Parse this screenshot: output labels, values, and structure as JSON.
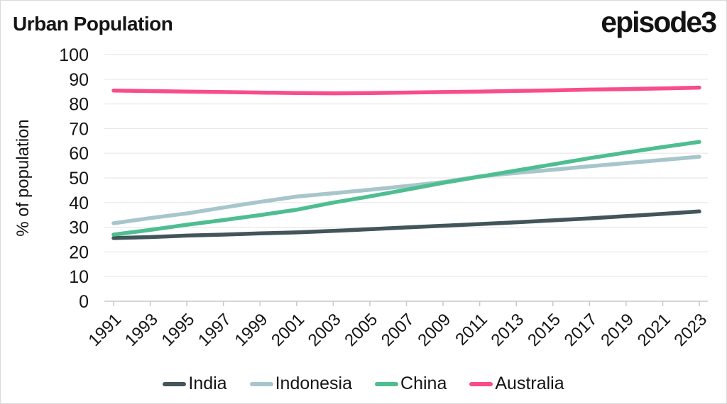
{
  "header": {
    "title": "Urban Population",
    "logo": "episode3"
  },
  "colors": {
    "text": "#141414",
    "gridline": "#e8e8e8",
    "axis": "#c9c9c9",
    "border": "#d9d9d9",
    "background": "#ffffff"
  },
  "chart_data": {
    "type": "line",
    "title": "Urban Population",
    "xlabel": "",
    "ylabel": "% of population",
    "ylim": [
      0,
      100
    ],
    "ytick_step": 10,
    "grid": true,
    "legend_position": "bottom",
    "categories": [
      "1991",
      "1993",
      "1995",
      "1997",
      "1999",
      "2001",
      "2003",
      "2005",
      "2007",
      "2009",
      "2011",
      "2013",
      "2015",
      "2017",
      "2019",
      "2021",
      "2023"
    ],
    "series": [
      {
        "name": "India",
        "color": "#42555a",
        "values": [
          25.6,
          26.0,
          26.6,
          27.0,
          27.5,
          27.9,
          28.5,
          29.2,
          29.9,
          30.6,
          31.3,
          32.0,
          32.8,
          33.6,
          34.5,
          35.4,
          36.4
        ]
      },
      {
        "name": "Indonesia",
        "color": "#a7c6cc",
        "values": [
          31.6,
          33.7,
          35.6,
          38.0,
          40.3,
          42.4,
          43.8,
          45.2,
          46.7,
          48.3,
          50.6,
          52.0,
          53.3,
          54.7,
          56.0,
          57.3,
          58.6
        ]
      },
      {
        "name": "China",
        "color": "#4ebe91",
        "values": [
          27.0,
          28.9,
          31.0,
          32.9,
          34.9,
          37.1,
          40.0,
          42.5,
          45.2,
          48.0,
          50.5,
          53.0,
          55.5,
          58.0,
          60.3,
          62.5,
          64.6
        ]
      },
      {
        "name": "Australia",
        "color": "#f94c8a",
        "values": [
          85.4,
          85.2,
          85.0,
          84.8,
          84.6,
          84.4,
          84.3,
          84.4,
          84.6,
          84.8,
          85.0,
          85.3,
          85.5,
          85.8,
          86.0,
          86.3,
          86.6
        ]
      }
    ]
  }
}
